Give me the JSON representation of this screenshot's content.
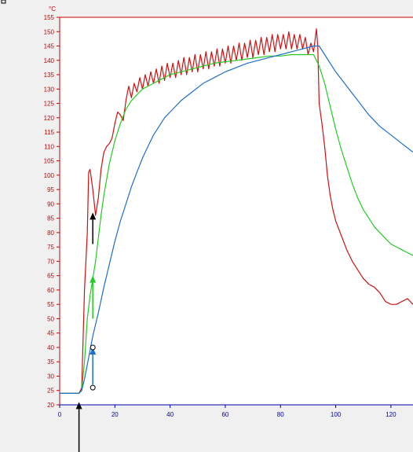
{
  "chart_data": {
    "type": "line",
    "ylabel": "°C",
    "xlim": [
      0,
      128
    ],
    "ylim": [
      20,
      155
    ],
    "x_ticks": [
      0,
      20,
      40,
      60,
      80,
      100,
      120
    ],
    "y_ticks": [
      20,
      25,
      30,
      35,
      40,
      45,
      50,
      55,
      60,
      65,
      70,
      75,
      80,
      85,
      90,
      95,
      100,
      105,
      110,
      115,
      120,
      125,
      130,
      135,
      140,
      145,
      150,
      155
    ],
    "grid": false,
    "colors": {
      "red": "#d01010",
      "green": "#22cc22",
      "blue": "#1e6fc8",
      "axis": "#cc0000",
      "xtick": "#0000aa"
    },
    "series": [
      {
        "color": "#d01010",
        "points": [
          [
            0,
            24
          ],
          [
            7,
            24
          ],
          [
            8,
            26
          ],
          [
            9,
            60
          ],
          [
            10,
            80
          ],
          [
            10.5,
            101
          ],
          [
            11,
            102
          ],
          [
            12,
            95
          ],
          [
            13,
            86
          ],
          [
            14,
            92
          ],
          [
            15,
            102
          ],
          [
            16,
            108
          ],
          [
            17,
            110
          ],
          [
            18,
            111
          ],
          [
            19,
            113
          ],
          [
            20,
            118
          ],
          [
            21,
            122
          ],
          [
            22,
            121
          ],
          [
            23,
            119
          ],
          [
            24,
            126
          ],
          [
            25,
            131
          ],
          [
            26,
            127
          ],
          [
            27,
            132
          ],
          [
            28,
            129
          ],
          [
            29,
            134
          ],
          [
            30,
            130
          ],
          [
            31,
            135
          ],
          [
            32,
            131
          ],
          [
            33,
            136
          ],
          [
            34,
            132
          ],
          [
            35,
            137
          ],
          [
            36,
            132
          ],
          [
            37,
            138
          ],
          [
            38,
            133
          ],
          [
            39,
            139
          ],
          [
            40,
            134
          ],
          [
            41,
            139
          ],
          [
            42,
            134
          ],
          [
            43,
            140
          ],
          [
            44,
            135
          ],
          [
            45,
            141
          ],
          [
            46,
            135
          ],
          [
            47,
            141
          ],
          [
            48,
            136
          ],
          [
            49,
            142
          ],
          [
            50,
            136
          ],
          [
            51,
            142
          ],
          [
            52,
            137
          ],
          [
            53,
            143
          ],
          [
            54,
            137
          ],
          [
            55,
            143
          ],
          [
            56,
            138
          ],
          [
            57,
            144
          ],
          [
            58,
            138
          ],
          [
            59,
            144
          ],
          [
            60,
            139
          ],
          [
            61,
            145
          ],
          [
            62,
            139
          ],
          [
            63,
            145
          ],
          [
            64,
            140
          ],
          [
            65,
            146
          ],
          [
            66,
            140
          ],
          [
            67,
            146
          ],
          [
            68,
            141
          ],
          [
            69,
            147
          ],
          [
            70,
            141
          ],
          [
            71,
            147
          ],
          [
            72,
            142
          ],
          [
            73,
            148
          ],
          [
            74,
            142
          ],
          [
            75,
            148
          ],
          [
            76,
            143
          ],
          [
            77,
            149
          ],
          [
            78,
            143
          ],
          [
            79,
            149
          ],
          [
            80,
            144
          ],
          [
            81,
            149
          ],
          [
            82,
            144
          ],
          [
            83,
            150
          ],
          [
            84,
            144
          ],
          [
            85,
            149
          ],
          [
            86,
            144
          ],
          [
            87,
            149
          ],
          [
            88,
            144
          ],
          [
            89,
            148
          ],
          [
            90,
            142
          ],
          [
            91,
            146
          ],
          [
            92,
            143
          ],
          [
            93,
            151
          ],
          [
            93.5,
            145
          ],
          [
            94,
            125
          ],
          [
            95,
            118
          ],
          [
            96,
            110
          ],
          [
            97,
            100
          ],
          [
            98,
            93
          ],
          [
            99,
            88
          ],
          [
            100,
            84
          ],
          [
            102,
            79
          ],
          [
            104,
            74
          ],
          [
            106,
            70
          ],
          [
            108,
            67
          ],
          [
            110,
            64
          ],
          [
            112,
            62
          ],
          [
            114,
            61
          ],
          [
            116,
            59
          ],
          [
            118,
            56
          ],
          [
            120,
            55
          ],
          [
            122,
            55
          ],
          [
            124,
            56
          ],
          [
            126,
            57
          ],
          [
            128,
            55
          ]
        ]
      },
      {
        "color": "#22cc22",
        "points": [
          [
            0,
            24
          ],
          [
            7,
            24
          ],
          [
            8,
            25
          ],
          [
            9,
            35
          ],
          [
            10,
            50
          ],
          [
            11,
            58
          ],
          [
            12,
            64
          ],
          [
            13,
            70
          ],
          [
            14,
            78
          ],
          [
            15,
            86
          ],
          [
            16,
            93
          ],
          [
            18,
            104
          ],
          [
            20,
            112
          ],
          [
            22,
            118
          ],
          [
            24,
            123
          ],
          [
            26,
            126
          ],
          [
            28,
            128
          ],
          [
            30,
            130
          ],
          [
            32,
            131
          ],
          [
            34,
            132
          ],
          [
            36,
            133
          ],
          [
            38,
            134
          ],
          [
            40,
            135
          ],
          [
            44,
            136
          ],
          [
            48,
            137
          ],
          [
            52,
            138
          ],
          [
            56,
            139
          ],
          [
            60,
            139.5
          ],
          [
            64,
            140
          ],
          [
            68,
            140.5
          ],
          [
            72,
            141
          ],
          [
            76,
            141.5
          ],
          [
            80,
            141.5
          ],
          [
            84,
            142
          ],
          [
            88,
            142
          ],
          [
            92,
            142
          ],
          [
            94,
            138
          ],
          [
            96,
            132
          ],
          [
            98,
            124
          ],
          [
            100,
            116
          ],
          [
            102,
            109
          ],
          [
            104,
            103
          ],
          [
            106,
            97
          ],
          [
            108,
            92
          ],
          [
            110,
            88
          ],
          [
            112,
            85
          ],
          [
            114,
            82
          ],
          [
            116,
            80
          ],
          [
            118,
            78
          ],
          [
            120,
            76
          ],
          [
            122,
            75
          ],
          [
            124,
            74
          ],
          [
            126,
            73
          ],
          [
            128,
            72
          ]
        ]
      },
      {
        "color": "#1e6fc8",
        "points": [
          [
            0,
            24
          ],
          [
            7,
            24
          ],
          [
            8,
            25
          ],
          [
            9,
            29
          ],
          [
            10,
            34
          ],
          [
            11,
            39
          ],
          [
            12,
            44
          ],
          [
            14,
            52
          ],
          [
            16,
            61
          ],
          [
            18,
            69
          ],
          [
            20,
            77
          ],
          [
            22,
            84
          ],
          [
            24,
            90
          ],
          [
            26,
            96
          ],
          [
            28,
            101
          ],
          [
            30,
            106
          ],
          [
            32,
            110
          ],
          [
            34,
            114
          ],
          [
            36,
            117
          ],
          [
            38,
            120
          ],
          [
            40,
            122
          ],
          [
            44,
            126
          ],
          [
            48,
            129
          ],
          [
            52,
            132
          ],
          [
            56,
            134
          ],
          [
            60,
            136
          ],
          [
            64,
            137.5
          ],
          [
            68,
            139
          ],
          [
            72,
            140
          ],
          [
            76,
            141
          ],
          [
            80,
            142
          ],
          [
            84,
            143
          ],
          [
            88,
            144
          ],
          [
            92,
            145
          ],
          [
            94,
            145
          ],
          [
            96,
            142
          ],
          [
            98,
            139
          ],
          [
            100,
            136
          ],
          [
            104,
            131
          ],
          [
            108,
            126
          ],
          [
            112,
            121
          ],
          [
            116,
            117
          ],
          [
            120,
            114
          ],
          [
            124,
            111
          ],
          [
            128,
            108
          ]
        ]
      }
    ],
    "annotations": [
      {
        "type": "arrow",
        "color": "#000000",
        "x_from": 7,
        "x_to": 7,
        "y_from": 2,
        "y_to": 21
      },
      {
        "type": "arrow",
        "color": "#000000",
        "x_from": 12,
        "x_to": 12,
        "y_from": 76,
        "y_to": 87
      },
      {
        "type": "arrow",
        "color": "#22cc22",
        "x_from": 12,
        "x_to": 12,
        "y_from": 50,
        "y_to": 65
      },
      {
        "type": "arrow",
        "color": "#1e6fc8",
        "x_from": 12,
        "x_to": 12,
        "y_from": 27,
        "y_to": 40
      }
    ],
    "markers": [
      {
        "x": 12,
        "y": 40
      },
      {
        "x": 12,
        "y": 26
      }
    ]
  }
}
